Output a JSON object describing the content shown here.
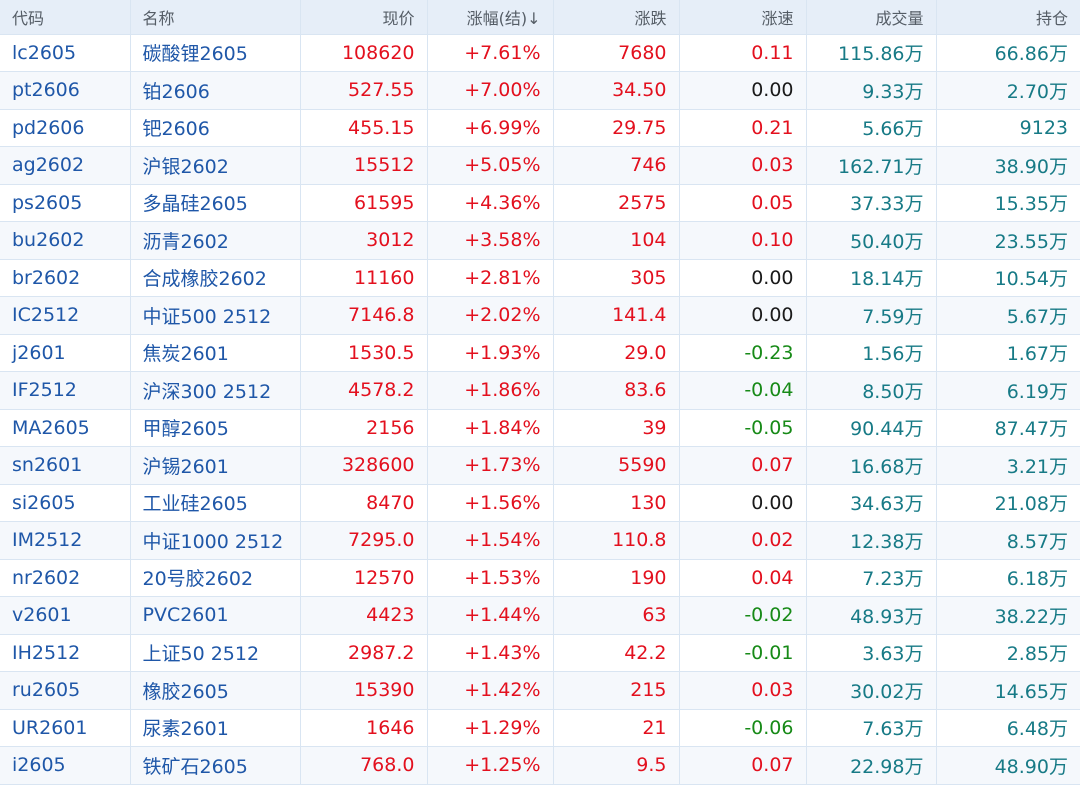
{
  "table": {
    "columns": [
      "代码",
      "名称",
      "现价",
      "涨幅(结)↓",
      "涨跌",
      "涨速",
      "成交量",
      "持仓"
    ],
    "rows": [
      {
        "code": "lc2605",
        "name": "碳酸锂2605",
        "price": "108620",
        "pct": "+7.61%",
        "change": "7680",
        "speed": "0.11",
        "volume": "115.86万",
        "oi": "66.86万"
      },
      {
        "code": "pt2606",
        "name": "铂2606",
        "price": "527.55",
        "pct": "+7.00%",
        "change": "34.50",
        "speed": "0.00",
        "volume": "9.33万",
        "oi": "2.70万"
      },
      {
        "code": "pd2606",
        "name": "钯2606",
        "price": "455.15",
        "pct": "+6.99%",
        "change": "29.75",
        "speed": "0.21",
        "volume": "5.66万",
        "oi": "9123"
      },
      {
        "code": "ag2602",
        "name": "沪银2602",
        "price": "15512",
        "pct": "+5.05%",
        "change": "746",
        "speed": "0.03",
        "volume": "162.71万",
        "oi": "38.90万"
      },
      {
        "code": "ps2605",
        "name": "多晶硅2605",
        "price": "61595",
        "pct": "+4.36%",
        "change": "2575",
        "speed": "0.05",
        "volume": "37.33万",
        "oi": "15.35万"
      },
      {
        "code": "bu2602",
        "name": "沥青2602",
        "price": "3012",
        "pct": "+3.58%",
        "change": "104",
        "speed": "0.10",
        "volume": "50.40万",
        "oi": "23.55万"
      },
      {
        "code": "br2602",
        "name": "合成橡胶2602",
        "price": "11160",
        "pct": "+2.81%",
        "change": "305",
        "speed": "0.00",
        "volume": "18.14万",
        "oi": "10.54万"
      },
      {
        "code": "IC2512",
        "name": "中证500 2512",
        "price": "7146.8",
        "pct": "+2.02%",
        "change": "141.4",
        "speed": "0.00",
        "volume": "7.59万",
        "oi": "5.67万"
      },
      {
        "code": "j2601",
        "name": "焦炭2601",
        "price": "1530.5",
        "pct": "+1.93%",
        "change": "29.0",
        "speed": "-0.23",
        "volume": "1.56万",
        "oi": "1.67万"
      },
      {
        "code": "IF2512",
        "name": "沪深300 2512",
        "price": "4578.2",
        "pct": "+1.86%",
        "change": "83.6",
        "speed": "-0.04",
        "volume": "8.50万",
        "oi": "6.19万"
      },
      {
        "code": "MA2605",
        "name": "甲醇2605",
        "price": "2156",
        "pct": "+1.84%",
        "change": "39",
        "speed": "-0.05",
        "volume": "90.44万",
        "oi": "87.47万"
      },
      {
        "code": "sn2601",
        "name": "沪锡2601",
        "price": "328600",
        "pct": "+1.73%",
        "change": "5590",
        "speed": "0.07",
        "volume": "16.68万",
        "oi": "3.21万"
      },
      {
        "code": "si2605",
        "name": "工业硅2605",
        "price": "8470",
        "pct": "+1.56%",
        "change": "130",
        "speed": "0.00",
        "volume": "34.63万",
        "oi": "21.08万"
      },
      {
        "code": "IM2512",
        "name": "中证1000 2512",
        "price": "7295.0",
        "pct": "+1.54%",
        "change": "110.8",
        "speed": "0.02",
        "volume": "12.38万",
        "oi": "8.57万"
      },
      {
        "code": "nr2602",
        "name": "20号胶2602",
        "price": "12570",
        "pct": "+1.53%",
        "change": "190",
        "speed": "0.04",
        "volume": "7.23万",
        "oi": "6.18万"
      },
      {
        "code": "v2601",
        "name": "PVC2601",
        "price": "4423",
        "pct": "+1.44%",
        "change": "63",
        "speed": "-0.02",
        "volume": "48.93万",
        "oi": "38.22万"
      },
      {
        "code": "IH2512",
        "name": "上证50 2512",
        "price": "2987.2",
        "pct": "+1.43%",
        "change": "42.2",
        "speed": "-0.01",
        "volume": "3.63万",
        "oi": "2.85万"
      },
      {
        "code": "ru2605",
        "name": "橡胶2605",
        "price": "15390",
        "pct": "+1.42%",
        "change": "215",
        "speed": "0.03",
        "volume": "30.02万",
        "oi": "14.65万"
      },
      {
        "code": "UR2601",
        "name": "尿素2601",
        "price": "1646",
        "pct": "+1.29%",
        "change": "21",
        "speed": "-0.06",
        "volume": "7.63万",
        "oi": "6.48万"
      },
      {
        "code": "i2605",
        "name": "铁矿石2605",
        "price": "768.0",
        "pct": "+1.25%",
        "change": "9.5",
        "speed": "0.07",
        "volume": "22.98万",
        "oi": "48.90万"
      }
    ]
  },
  "colors": {
    "up": "#e3101e",
    "down": "#178a17",
    "flat": "#1a1a1a",
    "code": "#1f57a8",
    "volume": "#177a86",
    "header_bg": "#e6eef8"
  }
}
